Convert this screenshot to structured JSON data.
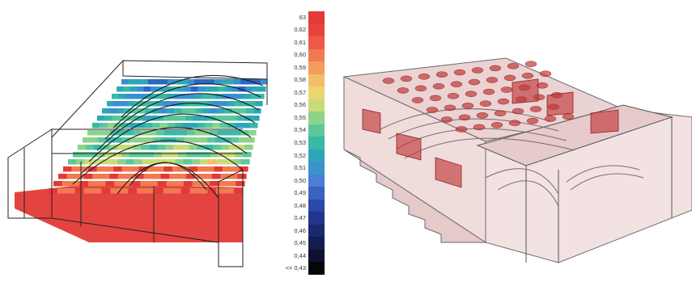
{
  "colorbar": {
    "labels": [
      "63",
      "0,62",
      "0,61",
      "0,60",
      "0,59",
      "0,58",
      "0,57",
      "0,56",
      "0,55",
      "0,54",
      "0,53",
      "0,52",
      "0,51",
      "0,50",
      "0,49",
      "0,48",
      "0,47",
      "0,46",
      "0,45",
      "0,44",
      "<= 0,43"
    ],
    "colors": [
      "#e23a36",
      "#e9443c",
      "#ee5a46",
      "#f07a52",
      "#f29c5e",
      "#f4bd6a",
      "#ecd56f",
      "#c9dc7a",
      "#8fd28a",
      "#5cc79a",
      "#3ab9a6",
      "#2fa6b8",
      "#3c93cc",
      "#4a7fd4",
      "#3a63c0",
      "#2c48a8",
      "#22348c",
      "#1a2870",
      "#151c50",
      "#0e1230",
      "#05060c"
    ]
  },
  "left_model": {
    "heatmap_palette": [
      "#1f3f9a",
      "#2b66c2",
      "#3b8fd0",
      "#2fa6b8",
      "#3ab9a6",
      "#5cc79a",
      "#8fd28a",
      "#c9dc7a",
      "#f4bd6a",
      "#f07a52",
      "#e23a36"
    ]
  },
  "right_model": {
    "fill_color": "#f3dede",
    "absorber_color": "#c0393b"
  }
}
